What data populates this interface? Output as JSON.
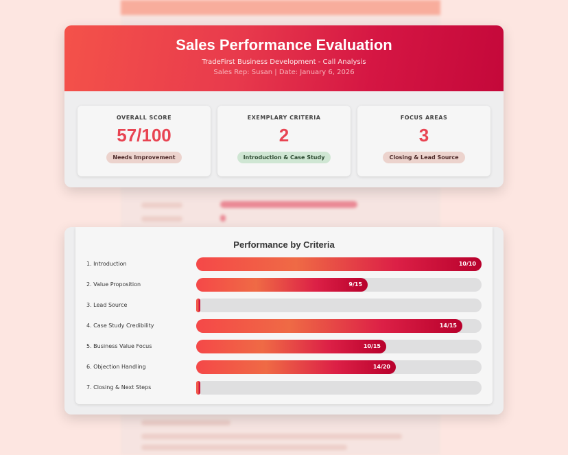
{
  "header": {
    "title": "Sales Performance Evaluation",
    "subtitle": "TradeFirst Business Development - Call Analysis",
    "meta": "Sales Rep: Susan | Date: January 6, 2026"
  },
  "stats": [
    {
      "label": "Overall Score",
      "value": "57/100",
      "badge": "Needs Improvement",
      "badge_color": "#ecd3cd"
    },
    {
      "label": "Exemplary Criteria",
      "value": "2",
      "badge": "Introduction & Case Study",
      "badge_color": "#cfe6d3"
    },
    {
      "label": "Focus Areas",
      "value": "3",
      "badge": "Closing & Lead Source",
      "badge_color": "#ecd3cd"
    }
  ],
  "chart_data": {
    "type": "bar",
    "orientation": "horizontal",
    "title": "Performance by Criteria",
    "categories": [
      "1. Introduction",
      "2. Value Proposition",
      "3. Lead Source",
      "4. Case Study Credibility",
      "5. Business Value Focus",
      "6. Objection Handling",
      "7. Closing & Next Steps"
    ],
    "values": [
      10,
      9,
      0,
      14,
      10,
      14,
      0
    ],
    "max_values": [
      10,
      15,
      10,
      15,
      15,
      20,
      15
    ],
    "bar_labels": [
      "10/10",
      "9/15",
      "",
      "14/15",
      "10/15",
      "14/20",
      ""
    ]
  },
  "colors": {
    "accent": "#e84452",
    "gradient_start": "#f4524a",
    "gradient_end": "#c4083a",
    "track": "#dfdfe0"
  }
}
